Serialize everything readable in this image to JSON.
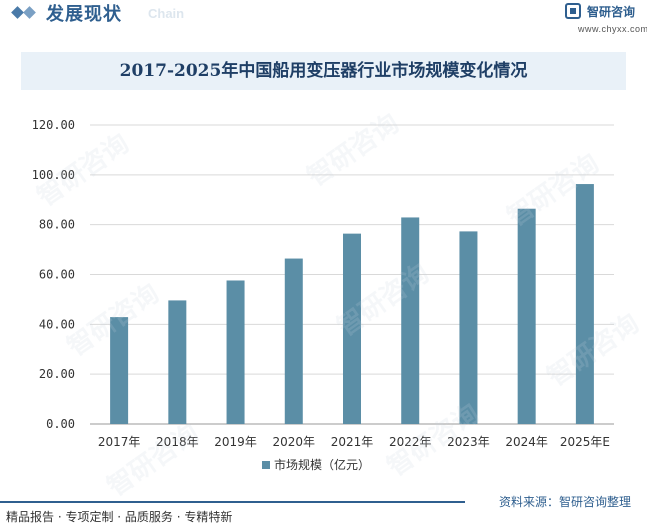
{
  "header": {
    "section_title": "发展现状",
    "section_sub": "Chain",
    "brand_name": "智研咨询",
    "brand_url": "www.chyxx.com"
  },
  "chart_data": {
    "type": "bar",
    "title": "2017-2025年中国船用变压器行业市场规模变化情况",
    "categories": [
      "2017年",
      "2018年",
      "2019年",
      "2020年",
      "2021年",
      "2022年",
      "2023年",
      "2024年",
      "2025年E"
    ],
    "series": [
      {
        "name": "市场规模（亿元）",
        "values": [
          42.9,
          49.6,
          57.6,
          66.4,
          76.4,
          82.9,
          77.3,
          86.4,
          96.3
        ]
      }
    ],
    "yticks": [
      "0.00",
      "20.00",
      "40.00",
      "60.00",
      "80.00",
      "100.00",
      "120.00"
    ],
    "ylim": [
      0,
      120
    ],
    "grid": true,
    "legend": "bottom",
    "bar_color": "#5b8ea6"
  },
  "footer": {
    "left": "精品报告 · 专项定制 · 品质服务 · 专精特新",
    "right": "资料来源：智研咨询整理"
  },
  "watermark": "智研咨询"
}
